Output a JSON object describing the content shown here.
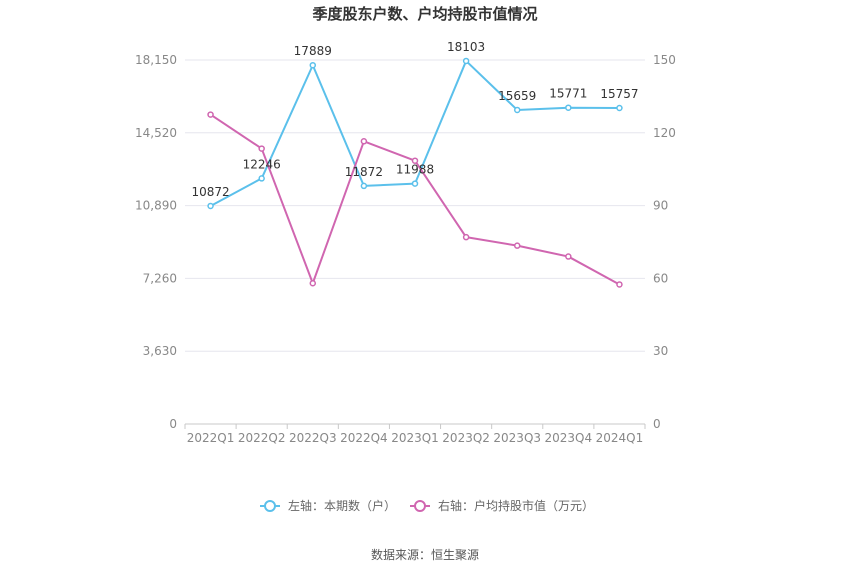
{
  "chart_data": {
    "type": "line",
    "title": "季度股东户数、户均持股市值情况",
    "categories": [
      "2022Q1",
      "2022Q2",
      "2022Q3",
      "2022Q4",
      "2023Q1",
      "2023Q2",
      "2023Q3",
      "2023Q4",
      "2024Q1"
    ],
    "series": [
      {
        "name": "左轴：本期数（户）",
        "axis": "left",
        "color": "#5bc0eb",
        "values": [
          10872,
          12246,
          17889,
          11872,
          11988,
          18103,
          15659,
          15771,
          15757
        ],
        "labels": [
          "10872",
          "12246",
          "17889",
          "11872",
          "11988",
          "18103",
          "15659",
          "15771",
          "15757"
        ]
      },
      {
        "name": "右轴：户均持股市值（万元）",
        "axis": "right",
        "color": "#d066b0",
        "values": [
          127.5,
          113.5,
          58.0,
          116.5,
          108.5,
          77.0,
          73.5,
          69.0,
          57.5
        ]
      }
    ],
    "left_axis": {
      "ylim": [
        0,
        18150
      ],
      "ticks": [
        "0",
        "3,630",
        "7,260",
        "10,890",
        "14,520",
        "18,150"
      ]
    },
    "right_axis": {
      "ylim": [
        0,
        150
      ],
      "ticks": [
        "0",
        "30",
        "60",
        "90",
        "120",
        "150"
      ]
    },
    "grid": true,
    "legend_position": "bottom"
  },
  "source_text": "数据来源：恒生聚源"
}
